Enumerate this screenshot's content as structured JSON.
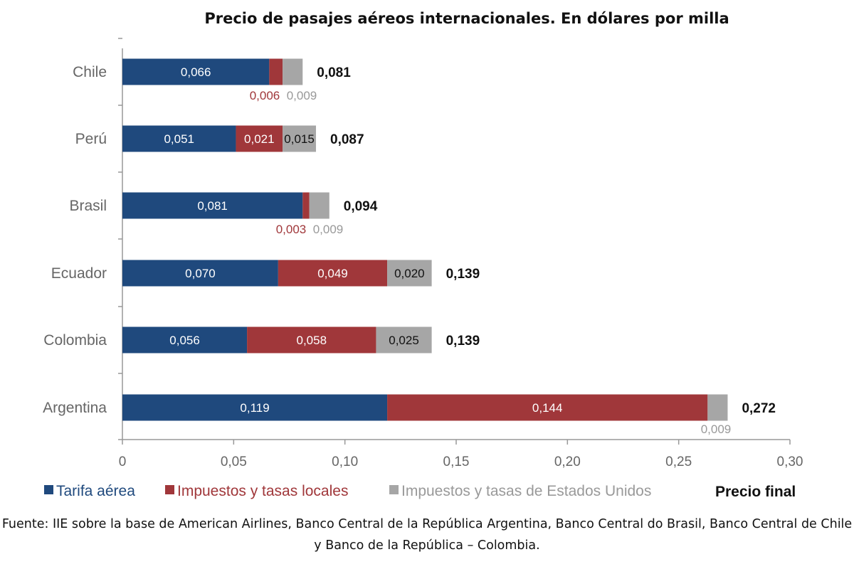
{
  "chart_data": {
    "type": "bar",
    "orientation": "horizontal",
    "stacked": true,
    "title": "Precio de pasajes aéreos internacionales. En dólares por milla",
    "categories": [
      "Chile",
      "Perú",
      "Brasil",
      "Ecuador",
      "Colombia",
      "Argentina"
    ],
    "series": [
      {
        "name": "Tarifa aérea",
        "color": "#1f497d",
        "values": [
          0.066,
          0.051,
          0.081,
          0.07,
          0.056,
          0.119
        ],
        "labels": [
          "0,066",
          "0,051",
          "0,081",
          "0,070",
          "0,056",
          "0,119"
        ]
      },
      {
        "name": "Impuestos y tasas locales",
        "color": "#a0373a",
        "values": [
          0.006,
          0.021,
          0.003,
          0.049,
          0.058,
          0.144
        ],
        "labels": [
          "0,006",
          "0,021",
          "0,003",
          "0,049",
          "0,058",
          "0,144"
        ]
      },
      {
        "name": "Impuestos y tasas de Estados Unidos",
        "color": "#a6a6a6",
        "values": [
          0.009,
          0.015,
          0.009,
          0.02,
          0.025,
          0.009
        ],
        "labels": [
          "0,009",
          "0,015",
          "0,009",
          "0,020",
          "0,025",
          "0,009"
        ]
      }
    ],
    "totals": {
      "name": "Precio final",
      "values": [
        0.081,
        0.087,
        0.094,
        0.139,
        0.139,
        0.272
      ],
      "labels": [
        "0,081",
        "0,087",
        "0,094",
        "0,139",
        "0,139",
        "0,272"
      ]
    },
    "xlim": [
      0,
      0.3
    ],
    "xticks": [
      "0",
      "0,05",
      "0,10",
      "0,15",
      "0,20",
      "0,25",
      "0,30"
    ],
    "legend_position": "bottom",
    "grid": false,
    "source": "Fuente: IIE sobre la base de American Airlines, Banco Central de la República Argentina, Banco Central do Brasil, Banco Central de Chile y Banco de la República – Colombia."
  }
}
